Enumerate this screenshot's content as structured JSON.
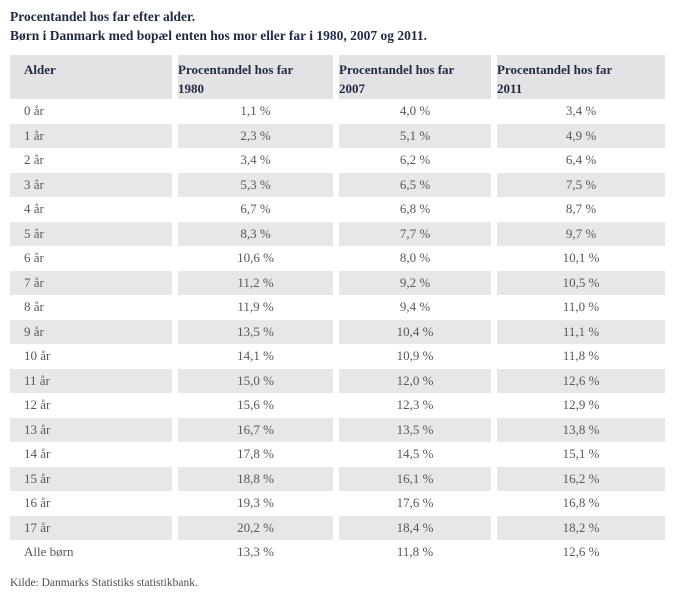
{
  "title": "Procentandel hos far efter alder.",
  "subtitle": "Børn i Danmark med bopæl enten hos mor eller far i 1980, 2007 og 2011.",
  "source": "Kilde: Danmarks Statistiks statistikbank.",
  "chart_data": {
    "type": "table",
    "title": "Procentandel hos far efter alder.",
    "subtitle": "Børn i Danmark med bopæl enten hos mor eller far i 1980, 2007 og 2011.",
    "columns": [
      {
        "label": "Alder",
        "sublabel": ""
      },
      {
        "label": "Procentandel hos far",
        "sublabel": "1980"
      },
      {
        "label": "Procentandel hos far",
        "sublabel": "2007"
      },
      {
        "label": "Procentandel hos far",
        "sublabel": "2011"
      }
    ],
    "categories": [
      "0 år",
      "1 år",
      "2 år",
      "3 år",
      "4 år",
      "5 år",
      "6 år",
      "7 år",
      "8 år",
      "9 år",
      "10 år",
      "11 år",
      "12 år",
      "13 år",
      "14 år",
      "15 år",
      "16 år",
      "17 år",
      "Alle børn"
    ],
    "series": [
      {
        "name": "1980",
        "values": [
          1.1,
          2.3,
          3.4,
          5.3,
          6.7,
          8.3,
          10.6,
          11.2,
          11.9,
          13.5,
          14.1,
          15.0,
          15.6,
          16.7,
          17.8,
          18.8,
          19.3,
          20.2,
          13.3
        ]
      },
      {
        "name": "2007",
        "values": [
          4.0,
          5.1,
          6.2,
          6.5,
          6.8,
          7.7,
          8.0,
          9.2,
          9.4,
          10.4,
          10.9,
          12.0,
          12.3,
          13.5,
          14.5,
          16.1,
          17.6,
          18.4,
          11.8
        ]
      },
      {
        "name": "2011",
        "values": [
          3.4,
          4.9,
          6.4,
          7.5,
          8.7,
          9.7,
          10.1,
          10.5,
          11.0,
          11.1,
          11.8,
          12.6,
          12.9,
          13.8,
          15.1,
          16.2,
          16.8,
          18.2,
          12.6
        ]
      }
    ],
    "unit": "%",
    "source": "Kilde: Danmarks Statistiks statistikbank."
  }
}
